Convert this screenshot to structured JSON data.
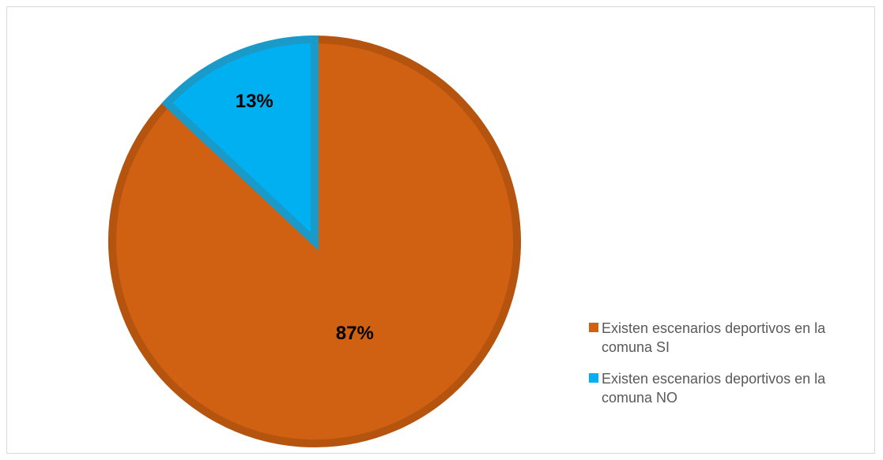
{
  "chart_data": {
    "type": "pie",
    "title": "",
    "series": [
      {
        "values": [
          87,
          13
        ],
        "unit": "%"
      }
    ],
    "slices": [
      {
        "label": "Existen escenarios deportivos en la comuna SI",
        "value": 87,
        "display": "87%",
        "color": "#D06012",
        "edge_color": "#B5540F"
      },
      {
        "label": "Existen escenarios deportivos en la comuna NO",
        "value": 13,
        "display": "13%",
        "color": "#00B0F0",
        "edge_color": "#1A9AC8"
      }
    ],
    "legend_position": "right-bottom",
    "start_angle": "12 o'clock, clockwise"
  }
}
